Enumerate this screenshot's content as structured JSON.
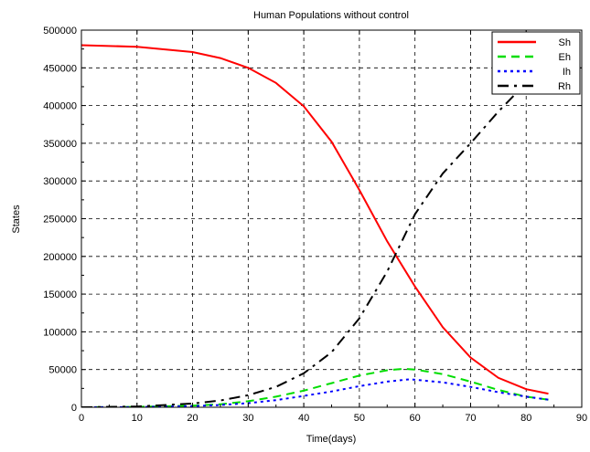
{
  "chart_data": {
    "type": "line",
    "title": "Human Populations without control",
    "xlabel": "Time(days)",
    "ylabel": "States",
    "xlim": [
      0,
      90
    ],
    "ylim": [
      0,
      500000
    ],
    "x_ticks": [
      0,
      10,
      20,
      30,
      40,
      50,
      60,
      70,
      80,
      90
    ],
    "y_ticks": [
      0,
      50000,
      100000,
      150000,
      200000,
      250000,
      300000,
      350000,
      400000,
      450000,
      500000
    ],
    "grid": true,
    "legend_position": "top-right",
    "series": [
      {
        "name": "Sh",
        "color": "#ff0000",
        "dash": "solid",
        "x": [
          0,
          10,
          20,
          25,
          30,
          35,
          40,
          45,
          50,
          55,
          60,
          65,
          70,
          75,
          80,
          84
        ],
        "y": [
          480000,
          478000,
          471000,
          463000,
          450000,
          430000,
          399000,
          352000,
          288000,
          220000,
          160000,
          106000,
          66000,
          39000,
          24000,
          18000
        ]
      },
      {
        "name": "Eh",
        "color": "#00dd00",
        "dash": "dashed",
        "x": [
          0,
          10,
          20,
          25,
          30,
          35,
          40,
          45,
          50,
          55,
          58,
          60,
          65,
          70,
          75,
          80,
          84
        ],
        "y": [
          0,
          500,
          2000,
          4000,
          8000,
          14000,
          22000,
          32000,
          42000,
          49000,
          51000,
          50000,
          44000,
          34000,
          23000,
          14000,
          10000
        ]
      },
      {
        "name": "Ih",
        "color": "#0000ff",
        "dash": "dotted",
        "x": [
          0,
          10,
          20,
          25,
          30,
          35,
          40,
          45,
          50,
          55,
          59,
          60,
          65,
          70,
          75,
          80,
          84
        ],
        "y": [
          0,
          300,
          1500,
          3000,
          5500,
          9500,
          15000,
          21000,
          28000,
          34000,
          37000,
          36500,
          33000,
          27000,
          20000,
          14000,
          10000
        ]
      },
      {
        "name": "Rh",
        "color": "#000000",
        "dash": "dashdot",
        "x": [
          0,
          10,
          20,
          25,
          30,
          35,
          40,
          45,
          50,
          55,
          60,
          65,
          70,
          75,
          80,
          82
        ],
        "y": [
          0,
          1000,
          5000,
          9000,
          16000,
          27000,
          45000,
          73000,
          118000,
          180000,
          256000,
          310000,
          350000,
          392000,
          430000,
          440000
        ]
      }
    ]
  }
}
